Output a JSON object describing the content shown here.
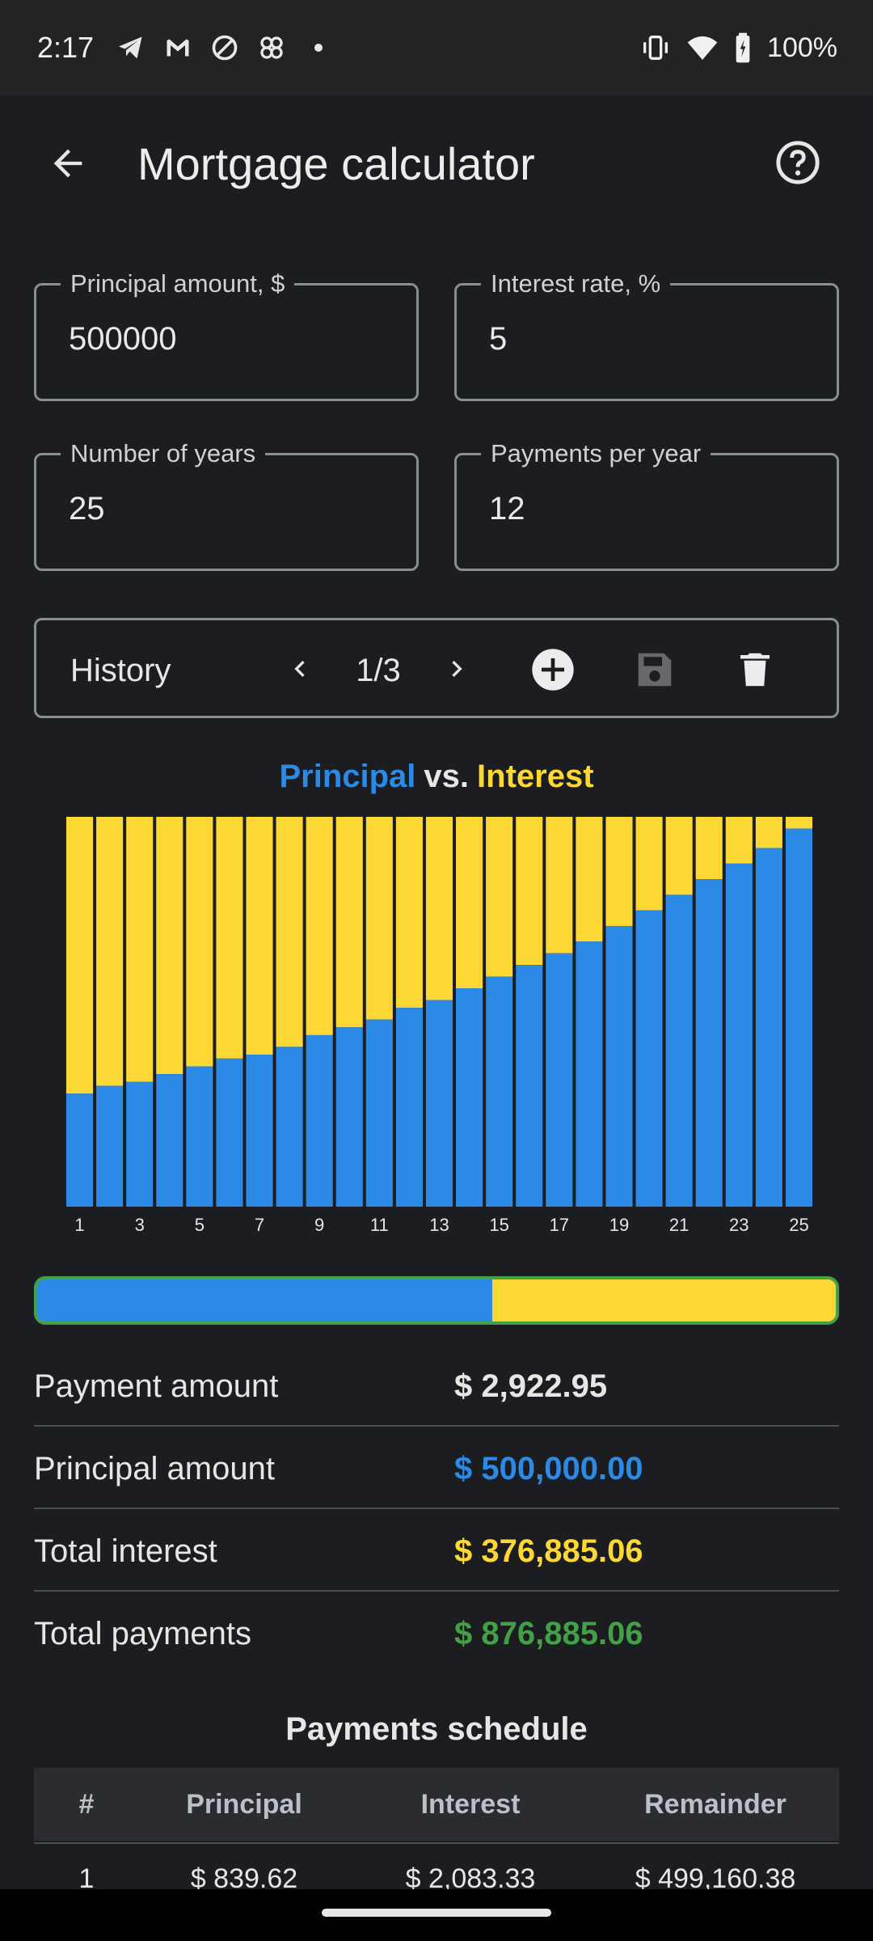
{
  "status_bar": {
    "time": "2:17",
    "left_icons": [
      "telegram-icon",
      "gmail-icon",
      "dnd-icon",
      "pinwheel-icon",
      "dot-icon"
    ],
    "battery": "100%"
  },
  "app_bar": {
    "title": "Mortgage calculator"
  },
  "inputs": {
    "principal": {
      "label": "Principal amount, $",
      "value": "500000"
    },
    "interest": {
      "label": "Interest rate, %",
      "value": "5"
    },
    "years": {
      "label": "Number of years",
      "value": "25"
    },
    "payments": {
      "label": "Payments per year",
      "value": "12"
    }
  },
  "history": {
    "label": "History",
    "page": "1/3"
  },
  "chart_title": {
    "principal": "Principal",
    "vs": "vs.",
    "interest": "Interest"
  },
  "colors": {
    "principal": "#2a8ae6",
    "interest": "#fdd835",
    "total": "#43a047",
    "background": "#1b1d20"
  },
  "chart_data": {
    "type": "bar",
    "stacked": true,
    "categories": [
      "1",
      "2",
      "3",
      "4",
      "5",
      "6",
      "7",
      "8",
      "9",
      "10",
      "11",
      "12",
      "13",
      "14",
      "15",
      "16",
      "17",
      "18",
      "19",
      "20",
      "21",
      "22",
      "23",
      "24",
      "25"
    ],
    "tick_labels": [
      "1",
      "3",
      "5",
      "7",
      "9",
      "11",
      "13",
      "15",
      "17",
      "19",
      "21",
      "23",
      "25"
    ],
    "series": [
      {
        "name": "Principal",
        "values": [
          0.29,
          0.31,
          0.32,
          0.34,
          0.36,
          0.38,
          0.39,
          0.41,
          0.44,
          0.46,
          0.48,
          0.51,
          0.53,
          0.56,
          0.59,
          0.62,
          0.65,
          0.68,
          0.72,
          0.76,
          0.8,
          0.84,
          0.88,
          0.92,
          0.97
        ]
      },
      {
        "name": "Interest",
        "values": [
          0.71,
          0.69,
          0.68,
          0.66,
          0.64,
          0.62,
          0.61,
          0.59,
          0.56,
          0.54,
          0.52,
          0.49,
          0.47,
          0.44,
          0.41,
          0.38,
          0.35,
          0.32,
          0.28,
          0.24,
          0.2,
          0.16,
          0.12,
          0.08,
          0.03
        ]
      }
    ],
    "ylim": [
      0,
      1
    ]
  },
  "progress": {
    "principal_share": 0.57
  },
  "summary": [
    {
      "label": "Payment amount",
      "value": "$ 2,922.95",
      "color": "#e6e6e6"
    },
    {
      "label": "Principal amount",
      "value": "$ 500,000.00",
      "color": "#2a8ae6"
    },
    {
      "label": "Total interest",
      "value": "$ 376,885.06",
      "color": "#fdd835"
    },
    {
      "label": "Total payments",
      "value": "$ 876,885.06",
      "color": "#43a047"
    }
  ],
  "schedule": {
    "title": "Payments schedule",
    "headers": [
      "#",
      "Principal",
      "Interest",
      "Remainder"
    ],
    "rows": [
      [
        "1",
        "$ 839.62",
        "$ 2,083.33",
        "$ 499,160.38"
      ]
    ]
  }
}
